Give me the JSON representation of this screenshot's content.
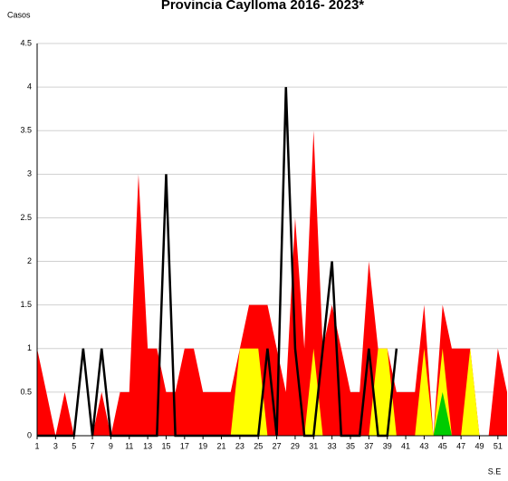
{
  "chart_data": {
    "type": "area",
    "title": "Provincia Caylloma 2016- 2023*",
    "ylabel": "Casos",
    "xlabel": "S.E",
    "x": [
      1,
      2,
      3,
      4,
      5,
      6,
      7,
      8,
      9,
      10,
      11,
      12,
      13,
      14,
      15,
      16,
      17,
      18,
      19,
      20,
      21,
      22,
      23,
      24,
      25,
      26,
      27,
      28,
      29,
      30,
      31,
      32,
      33,
      34,
      35,
      36,
      37,
      38,
      39,
      40,
      41,
      42,
      43,
      44,
      45,
      46,
      47,
      48,
      49,
      50,
      51,
      52
    ],
    "xlim": [
      1,
      52
    ],
    "xticks": [
      1,
      3,
      5,
      7,
      9,
      11,
      13,
      15,
      17,
      19,
      21,
      23,
      25,
      27,
      29,
      31,
      33,
      35,
      37,
      39,
      41,
      43,
      45,
      47,
      49,
      51
    ],
    "ylim": [
      0,
      4.5
    ],
    "yticks": [
      0,
      0.5,
      1,
      1.5,
      2,
      2.5,
      3,
      3.5,
      4,
      4.5
    ],
    "grid": true,
    "series": [
      {
        "kind": "area",
        "color": "#ff0000",
        "values": [
          1,
          0.5,
          0,
          0.5,
          0,
          0,
          0,
          0.5,
          0,
          0.5,
          0.5,
          3,
          1,
          1,
          0.5,
          0.5,
          1,
          1,
          0.5,
          0.5,
          0.5,
          0.5,
          1,
          1.5,
          1.5,
          1.5,
          1,
          0.5,
          2.5,
          1,
          3.5,
          1,
          1.5,
          1,
          0.5,
          0.5,
          2,
          1,
          1,
          0.5,
          0.5,
          0.5,
          1.5,
          0,
          1.5,
          1,
          1,
          1,
          0,
          0,
          1,
          0.5
        ]
      },
      {
        "kind": "area",
        "color": "#ffff00",
        "values": [
          0,
          0,
          0,
          0,
          0,
          0,
          0,
          0,
          0,
          0,
          0,
          0,
          0,
          0,
          0,
          0,
          0,
          0,
          0,
          0,
          0,
          0,
          1,
          1,
          1,
          0,
          0,
          0,
          0,
          0,
          1,
          0,
          0,
          0,
          0,
          0,
          0,
          1,
          1,
          0,
          0,
          0,
          1,
          0,
          1,
          0,
          0,
          1,
          0,
          0,
          0,
          0
        ]
      },
      {
        "kind": "area",
        "color": "#00cc00",
        "values": [
          0,
          0,
          0,
          0,
          0,
          0,
          0,
          0,
          0,
          0,
          0,
          0,
          0,
          0,
          0,
          0,
          0,
          0,
          0,
          0,
          0,
          0,
          0,
          0,
          0,
          0,
          0,
          0,
          0,
          0,
          0,
          0,
          0,
          0,
          0,
          0,
          0,
          0,
          0,
          0,
          0,
          0,
          0,
          0,
          0.5,
          0,
          0,
          0,
          0,
          0,
          0,
          0
        ]
      },
      {
        "kind": "line",
        "color": "#000000",
        "values": [
          0,
          0,
          0,
          0,
          0,
          1,
          0,
          1,
          0,
          0,
          0,
          0,
          0,
          0,
          3,
          0,
          0,
          0,
          0,
          0,
          0,
          0,
          0,
          0,
          0,
          1,
          0,
          4,
          1,
          0,
          0,
          1,
          2,
          0,
          0,
          0,
          1,
          0,
          0,
          1,
          null,
          null,
          null,
          null,
          null,
          null,
          null,
          null,
          null,
          null,
          null,
          null
        ]
      }
    ]
  }
}
